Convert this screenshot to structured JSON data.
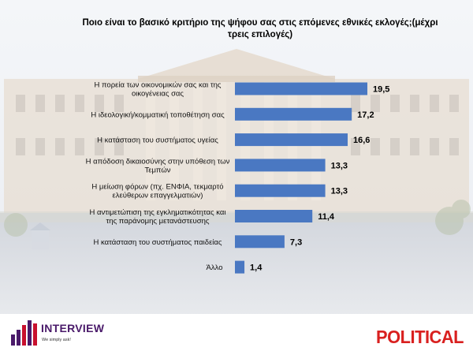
{
  "chart_data": {
    "type": "bar",
    "orientation": "horizontal",
    "title_line1": "Ποιο είναι το βασικό κριτήριο της ψήφου σας στις επόμενες εθνικές εκλογές;(μέχρι",
    "title_line2": "τρεις επιλογές)",
    "categories": [
      [
        "Η πορεία των οικονομικών σας και της",
        "οικογένειας σας"
      ],
      [
        "Η ιδεολογική/κομματική τοποθέτηση σας"
      ],
      [
        "Η κατάσταση του συστήματος υγείας"
      ],
      [
        "Η απόδοση δικαιοσύνης στην υπόθεση των",
        "Τεμπών"
      ],
      [
        "Η μείωση φόρων (πχ. ΕΝΦΙΑ, τεκμαρτό",
        "ελεύθερων επαγγελματιών)"
      ],
      [
        "Η αντιμετώπιση της εγκληματικότητας και",
        "της παράνομης μετανάστευσης"
      ],
      [
        "Η κατάσταση του συστήματος παιδείας"
      ],
      [
        "Άλλο"
      ]
    ],
    "values": [
      19.5,
      17.2,
      16.6,
      13.3,
      13.3,
      11.4,
      7.3,
      1.4
    ],
    "value_labels": [
      "19,5",
      "17,2",
      "16,6",
      "13,3",
      "13,3",
      "11,4",
      "7,3",
      "1,4"
    ],
    "bar_color": "#4a78c2",
    "xlim": [
      0,
      20
    ]
  },
  "branding": {
    "interview_name": "INTERVIEW",
    "interview_tagline": "We simply ask!",
    "political": "POLITICAL"
  },
  "colors": {
    "interview_purple": "#4a1a6a",
    "interview_red": "#c8102e",
    "political_red": "#d9201f"
  }
}
